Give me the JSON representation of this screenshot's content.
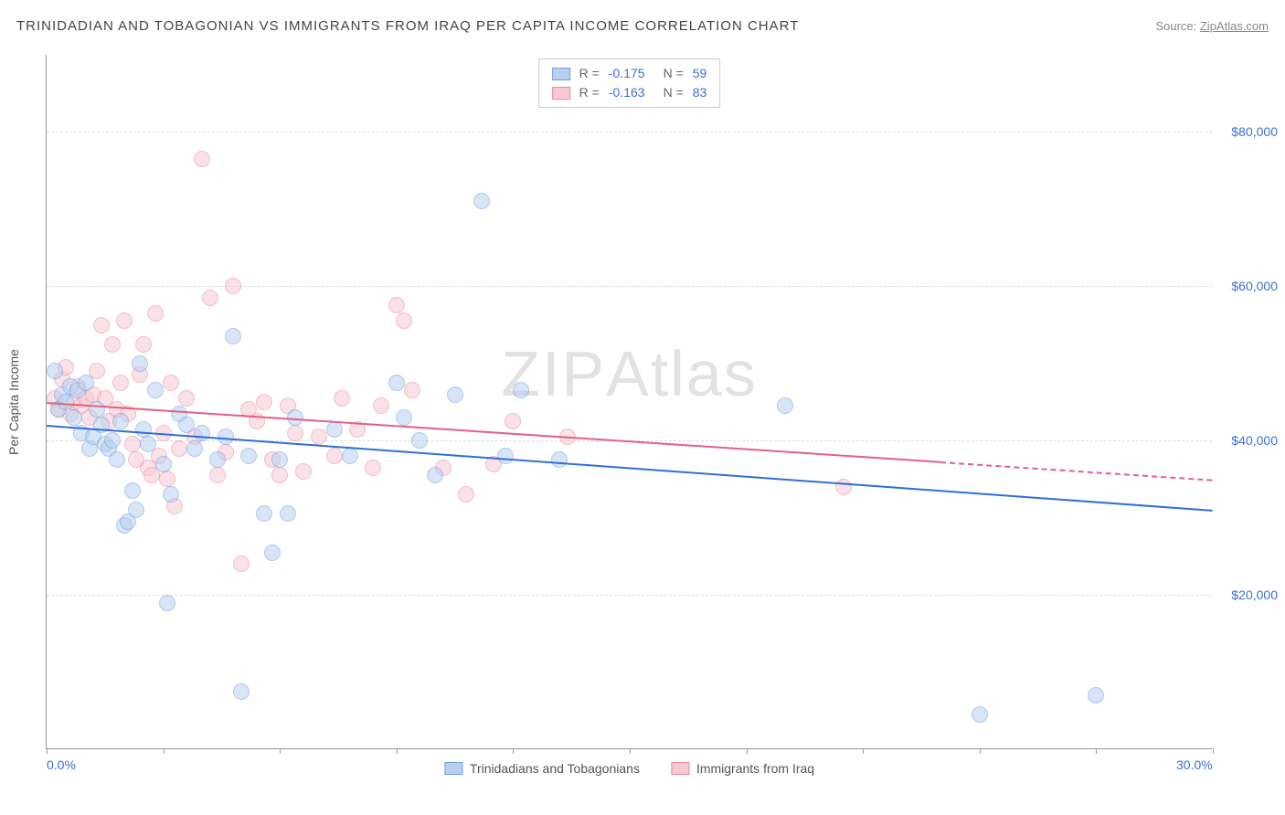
{
  "title": "TRINIDADIAN AND TOBAGONIAN VS IMMIGRANTS FROM IRAQ PER CAPITA INCOME CORRELATION CHART",
  "source_prefix": "Source: ",
  "source_name": "ZipAtlas.com",
  "y_axis_label": "Per Capita Income",
  "watermark_a": "ZIP",
  "watermark_b": "Atlas",
  "chart": {
    "type": "scatter",
    "xlim": [
      0,
      30
    ],
    "ylim": [
      0,
      90000
    ],
    "x_ticks": [
      0,
      3,
      6,
      9,
      12,
      15,
      18,
      21,
      24,
      27,
      30
    ],
    "x_tick_labels": {
      "0": "0.0%",
      "30": "30.0%"
    },
    "y_ticks": [
      20000,
      40000,
      60000,
      80000
    ],
    "y_tick_labels": [
      "$20,000",
      "$40,000",
      "$60,000",
      "$80,000"
    ],
    "grid_color": "#dddddd",
    "axis_color": "#999999",
    "background_color": "#ffffff",
    "tick_label_color": "#3b6fd8",
    "series": [
      {
        "name": "Trinidadians and Tobagonians",
        "fill": "#b8d0f0",
        "stroke": "#6f9fe0",
        "trend_color": "#2e6fd8",
        "r_value": "-0.175",
        "n_value": "59",
        "trend": {
          "x1": 0,
          "y1": 42000,
          "x2": 30,
          "y2": 31000,
          "dash_from_x": null
        },
        "points": [
          [
            0.2,
            49000
          ],
          [
            0.3,
            44000
          ],
          [
            0.4,
            46000
          ],
          [
            0.5,
            45000
          ],
          [
            0.6,
            47000
          ],
          [
            0.7,
            43000
          ],
          [
            0.8,
            46500
          ],
          [
            0.9,
            41000
          ],
          [
            1.0,
            47500
          ],
          [
            1.1,
            39000
          ],
          [
            1.2,
            40500
          ],
          [
            1.3,
            44000
          ],
          [
            1.4,
            42000
          ],
          [
            1.5,
            39500
          ],
          [
            1.6,
            39000
          ],
          [
            1.7,
            40000
          ],
          [
            1.8,
            37500
          ],
          [
            1.9,
            42500
          ],
          [
            2.0,
            29000
          ],
          [
            2.1,
            29500
          ],
          [
            2.2,
            33500
          ],
          [
            2.3,
            31000
          ],
          [
            2.4,
            50000
          ],
          [
            2.5,
            41500
          ],
          [
            2.6,
            39500
          ],
          [
            2.8,
            46500
          ],
          [
            3.0,
            37000
          ],
          [
            3.1,
            19000
          ],
          [
            3.2,
            33000
          ],
          [
            3.4,
            43500
          ],
          [
            3.6,
            42000
          ],
          [
            3.8,
            39000
          ],
          [
            4.0,
            41000
          ],
          [
            4.4,
            37500
          ],
          [
            4.6,
            40500
          ],
          [
            4.8,
            53500
          ],
          [
            5.0,
            7500
          ],
          [
            5.2,
            38000
          ],
          [
            5.6,
            30500
          ],
          [
            5.8,
            25500
          ],
          [
            6.0,
            37500
          ],
          [
            6.2,
            30500
          ],
          [
            6.4,
            43000
          ],
          [
            7.4,
            41500
          ],
          [
            7.8,
            38000
          ],
          [
            9.0,
            47500
          ],
          [
            9.2,
            43000
          ],
          [
            9.6,
            40000
          ],
          [
            10.0,
            35500
          ],
          [
            10.5,
            46000
          ],
          [
            11.2,
            71000
          ],
          [
            11.8,
            38000
          ],
          [
            12.2,
            46500
          ],
          [
            13.2,
            37500
          ],
          [
            19.0,
            44500
          ],
          [
            24.0,
            4500
          ],
          [
            27.0,
            7000
          ]
        ]
      },
      {
        "name": "Immigrants from Iraq",
        "fill": "#f7c9d4",
        "stroke": "#e88aa0",
        "trend_color": "#e46083",
        "r_value": "-0.163",
        "n_value": "83",
        "trend": {
          "x1": 0,
          "y1": 45000,
          "x2": 30,
          "y2": 35000,
          "dash_from_x": 23
        },
        "points": [
          [
            0.2,
            45500
          ],
          [
            0.3,
            44000
          ],
          [
            0.4,
            48000
          ],
          [
            0.5,
            49500
          ],
          [
            0.6,
            43500
          ],
          [
            0.7,
            45000
          ],
          [
            0.8,
            47000
          ],
          [
            0.9,
            44500
          ],
          [
            1.0,
            45500
          ],
          [
            1.1,
            43000
          ],
          [
            1.2,
            46000
          ],
          [
            1.3,
            49000
          ],
          [
            1.4,
            55000
          ],
          [
            1.5,
            45500
          ],
          [
            1.6,
            42500
          ],
          [
            1.7,
            52500
          ],
          [
            1.8,
            44000
          ],
          [
            1.9,
            47500
          ],
          [
            2.0,
            55500
          ],
          [
            2.1,
            43500
          ],
          [
            2.2,
            39500
          ],
          [
            2.3,
            37500
          ],
          [
            2.4,
            48500
          ],
          [
            2.5,
            52500
          ],
          [
            2.6,
            36500
          ],
          [
            2.7,
            35500
          ],
          [
            2.8,
            56500
          ],
          [
            2.9,
            38000
          ],
          [
            3.0,
            41000
          ],
          [
            3.1,
            35000
          ],
          [
            3.2,
            47500
          ],
          [
            3.3,
            31500
          ],
          [
            3.4,
            39000
          ],
          [
            3.6,
            45500
          ],
          [
            3.8,
            40500
          ],
          [
            4.0,
            76500
          ],
          [
            4.2,
            58500
          ],
          [
            4.4,
            35500
          ],
          [
            4.6,
            38500
          ],
          [
            4.8,
            60000
          ],
          [
            5.0,
            24000
          ],
          [
            5.2,
            44000
          ],
          [
            5.4,
            42500
          ],
          [
            5.6,
            45000
          ],
          [
            5.8,
            37500
          ],
          [
            6.0,
            35500
          ],
          [
            6.2,
            44500
          ],
          [
            6.4,
            41000
          ],
          [
            6.6,
            36000
          ],
          [
            7.0,
            40500
          ],
          [
            7.4,
            38000
          ],
          [
            7.6,
            45500
          ],
          [
            8.0,
            41500
          ],
          [
            8.4,
            36500
          ],
          [
            8.6,
            44500
          ],
          [
            9.0,
            57500
          ],
          [
            9.2,
            55500
          ],
          [
            9.4,
            46500
          ],
          [
            10.2,
            36500
          ],
          [
            10.8,
            33000
          ],
          [
            11.5,
            37000
          ],
          [
            12.0,
            42500
          ],
          [
            13.4,
            40500
          ],
          [
            20.5,
            34000
          ]
        ]
      }
    ]
  }
}
